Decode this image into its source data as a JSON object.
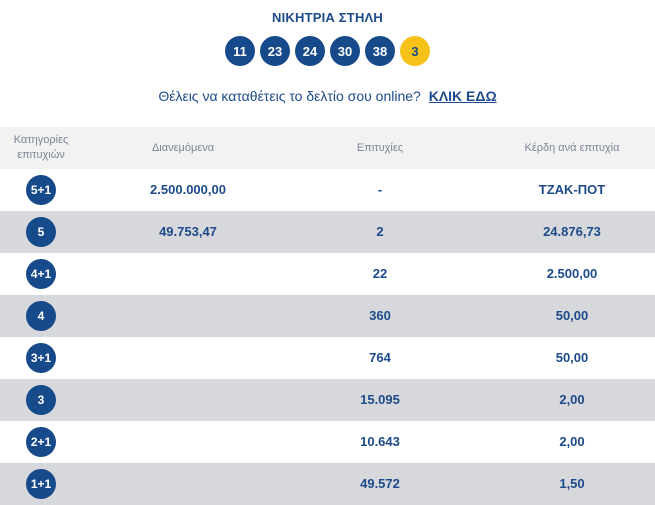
{
  "title": "ΝΙΚΗΤΡΙΑ ΣΤΗΛΗ",
  "numbers": [
    "11",
    "23",
    "24",
    "30",
    "38"
  ],
  "bonus": "3",
  "promo": {
    "text": "Θέλεις να καταθέτεις το δελτίο σου online?",
    "link": "ΚΛΙΚ ΕΔΩ"
  },
  "headers": {
    "category": "Κατηγορίες επιτυχιών",
    "distributed": "Διανεμόμενα",
    "winners": "Επιτυχίες",
    "prize": "Κέρδη ανά επιτυχία"
  },
  "rows": [
    {
      "cat": "5+1",
      "dist": "2.500.000,00",
      "wins": "-",
      "prize": "ΤΖΑΚ-ΠΟΤ"
    },
    {
      "cat": "5",
      "dist": "49.753,47",
      "wins": "2",
      "prize": "24.876,73"
    },
    {
      "cat": "4+1",
      "dist": "",
      "wins": "22",
      "prize": "2.500,00"
    },
    {
      "cat": "4",
      "dist": "",
      "wins": "360",
      "prize": "50,00"
    },
    {
      "cat": "3+1",
      "dist": "",
      "wins": "764",
      "prize": "50,00"
    },
    {
      "cat": "3",
      "dist": "",
      "wins": "15.095",
      "prize": "2,00"
    },
    {
      "cat": "2+1",
      "dist": "",
      "wins": "10.643",
      "prize": "2,00"
    },
    {
      "cat": "1+1",
      "dist": "",
      "wins": "49.572",
      "prize": "1,50"
    }
  ],
  "colors": {
    "primary": "#174a8b",
    "bonus": "#f6c21a",
    "alt_row": "#d6d8dc",
    "header_bg": "#f2f2f2"
  }
}
